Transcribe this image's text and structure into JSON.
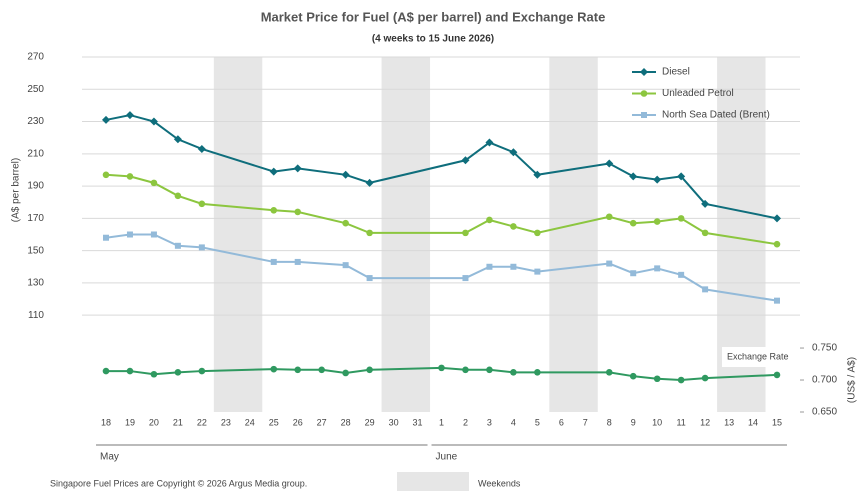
{
  "chart_data": {
    "type": "line",
    "title": "Market Price for Fuel (A$ per barrel) and Exchange Rate",
    "subtitle": "(4 weeks to 15 June 2026)",
    "y_label": "(A$ per barrel)",
    "y2_label": "(US$ / A$)",
    "groups": [
      {
        "name": "May",
        "categories": [
          "18",
          "19",
          "20",
          "21",
          "22",
          "23",
          "24",
          "25",
          "26",
          "27",
          "28",
          "29",
          "30",
          "31"
        ]
      },
      {
        "name": "June",
        "categories": [
          "1",
          "2",
          "3",
          "4",
          "5",
          "6",
          "7",
          "8",
          "9",
          "10",
          "11",
          "12",
          "13",
          "14",
          "15"
        ]
      }
    ],
    "weekend": [
      false,
      false,
      false,
      false,
      false,
      true,
      true,
      false,
      false,
      false,
      false,
      false,
      true,
      true,
      false,
      false,
      false,
      false,
      false,
      true,
      true,
      false,
      false,
      false,
      false,
      false,
      true,
      true,
      false
    ],
    "weekend_label": "Weekends",
    "weekend_color": "#e6e6e6",
    "connect_gaps": true,
    "series": [
      {
        "name": "Diesel",
        "color": "#0f6e7c",
        "marker": "diamond",
        "values": [
          231,
          234,
          230,
          219,
          213,
          null,
          null,
          199,
          201,
          null,
          197,
          192,
          null,
          null,
          null,
          206,
          217,
          211,
          197,
          null,
          null,
          204,
          196,
          194,
          196,
          179,
          null,
          null,
          170
        ]
      },
      {
        "name": "Unleaded Petrol",
        "color": "#8cc63f",
        "marker": "circle",
        "values": [
          197,
          196,
          192,
          184,
          179,
          null,
          null,
          175,
          174,
          null,
          167,
          161,
          null,
          null,
          null,
          161,
          169,
          165,
          161,
          null,
          null,
          171,
          167,
          168,
          170,
          161,
          null,
          null,
          154
        ]
      },
      {
        "name": "North Sea Dated (Brent)",
        "color": "#93bad9",
        "marker": "square",
        "values": [
          158,
          160,
          160,
          153,
          152,
          null,
          null,
          143,
          143,
          null,
          141,
          133,
          null,
          null,
          null,
          133,
          140,
          140,
          137,
          null,
          null,
          142,
          136,
          139,
          135,
          126,
          null,
          null,
          119
        ]
      },
      {
        "name": "Exchange Rate",
        "color": "#2f9960",
        "marker": "circle",
        "axis": "y2",
        "values": [
          0.714,
          0.714,
          0.709,
          0.712,
          0.714,
          null,
          null,
          0.717,
          0.716,
          0.716,
          0.711,
          0.716,
          null,
          null,
          0.719,
          0.716,
          0.716,
          0.712,
          0.712,
          null,
          null,
          0.712,
          0.706,
          0.702,
          0.7,
          0.703,
          null,
          null,
          0.708
        ]
      }
    ],
    "ylim": [
      50,
      270
    ],
    "yticks": [
      110,
      130,
      150,
      170,
      190,
      210,
      230,
      250,
      270
    ],
    "y2lim": [
      0.65,
      1.205
    ],
    "y2ticks": [
      {
        "value": 0.65,
        "label": "0.650"
      },
      {
        "value": 0.7,
        "label": "0.700"
      },
      {
        "value": 0.75,
        "label": "0.750"
      }
    ],
    "grid": true,
    "legend": "upper right",
    "note": "Singapore Fuel Prices are Copyright © 2026 Argus Media group."
  }
}
